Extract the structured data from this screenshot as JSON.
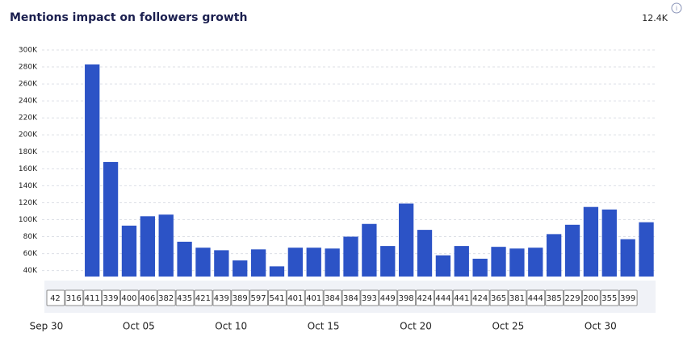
{
  "chart_data": {
    "type": "bar",
    "title": "Mentions impact on followers growth",
    "total": "12.4K",
    "categories": [
      "Sep 30",
      null,
      null,
      null,
      null,
      "Oct 05",
      null,
      null,
      null,
      null,
      "Oct 10",
      null,
      null,
      null,
      null,
      "Oct 15",
      null,
      null,
      null,
      null,
      "Oct 20",
      null,
      null,
      null,
      null,
      "Oct 25",
      null,
      null,
      null,
      null,
      "Oct 30",
      null,
      null
    ],
    "values": [
      null,
      null,
      283000,
      168000,
      93000,
      104000,
      106000,
      74000,
      67000,
      64000,
      52000,
      65000,
      45000,
      67000,
      67000,
      66000,
      80000,
      95000,
      69000,
      119000,
      88000,
      58000,
      69000,
      54000,
      68000,
      66000,
      67000,
      83000,
      94000,
      115000,
      112000,
      77000,
      97000
    ],
    "mentions": [
      42,
      316,
      411,
      339,
      400,
      406,
      382,
      435,
      421,
      439,
      389,
      597,
      541,
      401,
      401,
      384,
      384,
      393,
      449,
      398,
      424,
      444,
      441,
      424,
      365,
      381,
      444,
      385,
      229,
      200,
      355,
      399,
      null
    ],
    "color": "#2c53c6",
    "ylim": [
      33000,
      300000
    ],
    "yticks": [
      {
        "value": 40000,
        "label": "40K"
      },
      {
        "value": 60000,
        "label": "60K"
      },
      {
        "value": 80000,
        "label": "80K"
      },
      {
        "value": 100000,
        "label": "100K"
      },
      {
        "value": 120000,
        "label": "120K"
      },
      {
        "value": 140000,
        "label": "140K"
      },
      {
        "value": 160000,
        "label": "160K"
      },
      {
        "value": 180000,
        "label": "180K"
      },
      {
        "value": 200000,
        "label": "200K"
      },
      {
        "value": 220000,
        "label": "220K"
      },
      {
        "value": 240000,
        "label": "240K"
      },
      {
        "value": 260000,
        "label": "260K"
      },
      {
        "value": 280000,
        "label": "280K"
      },
      {
        "value": 300000,
        "label": "300K"
      }
    ],
    "grid": true
  }
}
